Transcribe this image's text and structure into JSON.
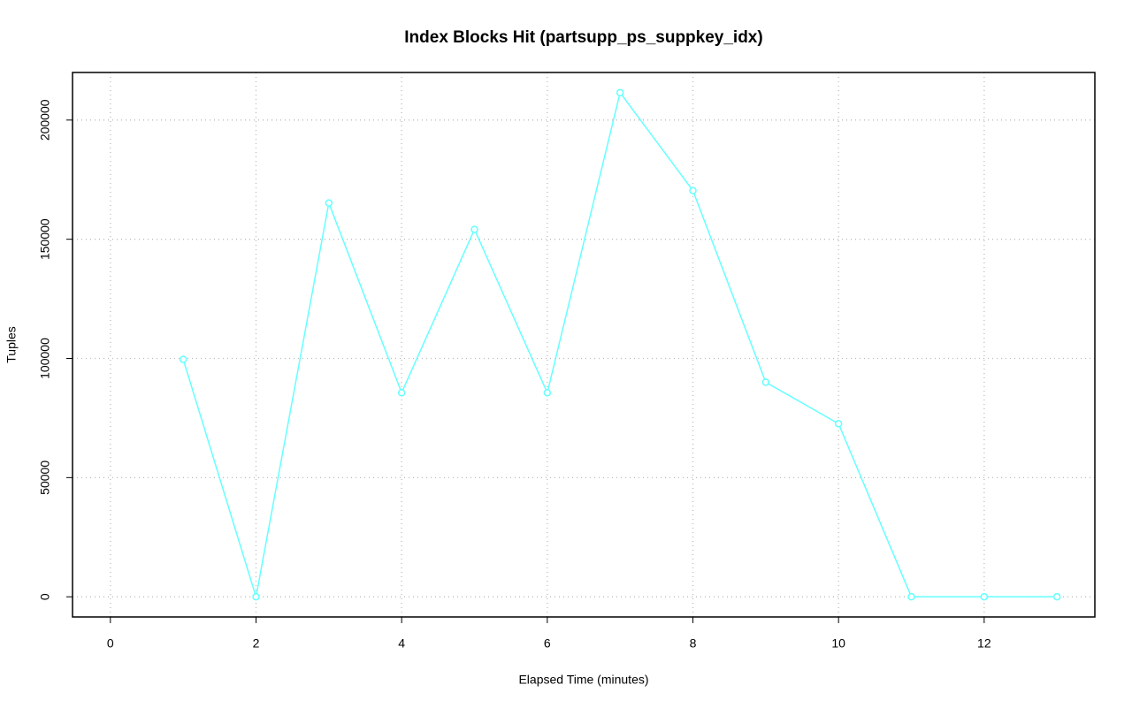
{
  "chart_data": {
    "type": "line",
    "title": "Index Blocks Hit (partsupp_ps_suppkey_idx)",
    "x_label": "Elapsed Time (minutes)",
    "y_label": "Tuples",
    "x": [
      1,
      2,
      3,
      4,
      5,
      6,
      7,
      8,
      9,
      10,
      11,
      12,
      13
    ],
    "series": [
      {
        "color": "#66ffff",
        "values": [
          99600,
          0,
          165200,
          85600,
          154100,
          85600,
          211500,
          170400,
          90000,
          72600,
          0,
          0,
          0
        ]
      }
    ],
    "xlim": [
      -0.52,
      13.52
    ],
    "ylim": [
      -8460,
      219960
    ],
    "xticks": [
      0,
      2,
      4,
      6,
      8,
      10,
      12
    ],
    "yticks": [
      0,
      50000,
      100000,
      150000,
      200000
    ],
    "grid": true
  }
}
